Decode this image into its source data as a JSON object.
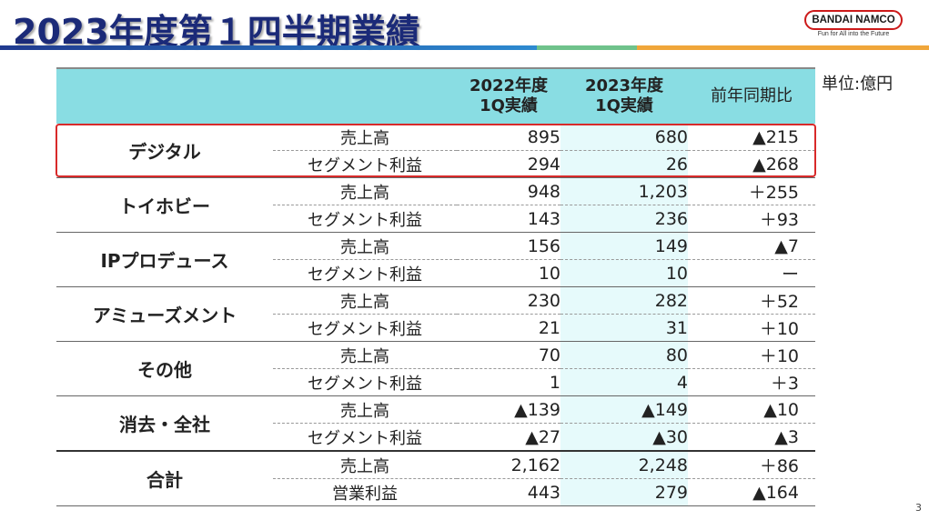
{
  "header": {
    "title": "2023年度第１四半期業績",
    "logo_text": "BANDAI NAMCO",
    "tagline": "Fun for All into the Future",
    "unit": "単位:億円",
    "page_number": "3"
  },
  "colors": {
    "title": "#1b2a78",
    "header_fill": "#89dde3",
    "highlight": "#d82a2a"
  },
  "table": {
    "columns": [
      "2022年度\n1Q実績",
      "2023年度\n1Q実績",
      "前年同期比"
    ],
    "col1": "2022年度",
    "col1b": "1Q実績",
    "col2": "2023年度",
    "col2b": "1Q実績",
    "col3": "前年同期比",
    "segments": [
      {
        "name": "デジタル",
        "rows": [
          {
            "item": "売上高",
            "v2022": "895",
            "v2023": "680",
            "diff": "▲215"
          },
          {
            "item": "セグメント利益",
            "v2022": "294",
            "v2023": "26",
            "diff": "▲268"
          }
        ]
      },
      {
        "name": "トイホビー",
        "rows": [
          {
            "item": "売上高",
            "v2022": "948",
            "v2023": "1,203",
            "diff": "＋255"
          },
          {
            "item": "セグメント利益",
            "v2022": "143",
            "v2023": "236",
            "diff": "＋93"
          }
        ]
      },
      {
        "name": "IPプロデュース",
        "rows": [
          {
            "item": "売上高",
            "v2022": "156",
            "v2023": "149",
            "diff": "▲7"
          },
          {
            "item": "セグメント利益",
            "v2022": "10",
            "v2023": "10",
            "diff": "ー"
          }
        ]
      },
      {
        "name": "アミューズメント",
        "rows": [
          {
            "item": "売上高",
            "v2022": "230",
            "v2023": "282",
            "diff": "＋52"
          },
          {
            "item": "セグメント利益",
            "v2022": "21",
            "v2023": "31",
            "diff": "＋10"
          }
        ]
      },
      {
        "name": "その他",
        "rows": [
          {
            "item": "売上高",
            "v2022": "70",
            "v2023": "80",
            "diff": "＋10"
          },
          {
            "item": "セグメント利益",
            "v2022": "1",
            "v2023": "4",
            "diff": "＋3"
          }
        ]
      },
      {
        "name": "消去・全社",
        "rows": [
          {
            "item": "売上高",
            "v2022": "▲139",
            "v2023": "▲149",
            "diff": "▲10"
          },
          {
            "item": "セグメント利益",
            "v2022": "▲27",
            "v2023": "▲30",
            "diff": "▲3"
          }
        ]
      },
      {
        "name": "合計",
        "rows": [
          {
            "item": "売上高",
            "v2022": "2,162",
            "v2023": "2,248",
            "diff": "＋86"
          },
          {
            "item": "営業利益",
            "v2022": "443",
            "v2023": "279",
            "diff": "▲164"
          }
        ]
      }
    ]
  }
}
